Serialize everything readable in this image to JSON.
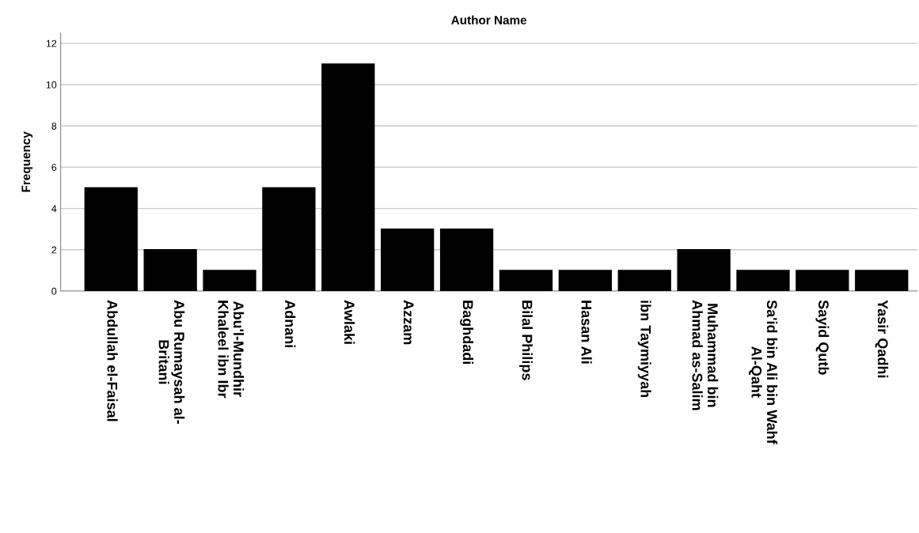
{
  "chart_data": {
    "type": "bar",
    "title": "Author Name",
    "ylabel": "Frequency",
    "categories": [
      "Abdullah el-Faisal",
      "Abu Rumaysah al-\nBritani",
      "Abu'l-Mundhir\nKhaleel ibn Ibr",
      "Adnani",
      "Awlaki",
      "Azzam",
      "Baghdadi",
      "Bilal Philips",
      "Hasan Ali",
      "ibn Taymiyyah",
      "Muhammad bin\nAhmad as-Salim",
      "Sa'id bin Ali bin Wahf\nAl-Qaht",
      "Sayid Qutb",
      "Yasir Qadhi"
    ],
    "values": [
      5,
      2,
      1,
      5,
      11,
      3,
      3,
      1,
      1,
      1,
      2,
      1,
      1,
      1
    ],
    "color": "#000000",
    "ylim": [
      0,
      12.5
    ],
    "yticks": [
      0,
      2,
      4,
      6,
      8,
      10,
      12
    ],
    "grid": "y"
  }
}
